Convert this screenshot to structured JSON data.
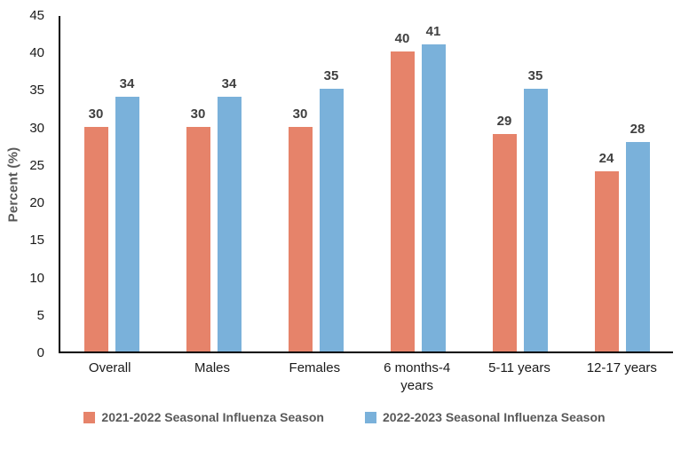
{
  "chart_data": {
    "type": "bar",
    "title": "",
    "xlabel": "",
    "ylabel": "Percent (%)",
    "ylim": [
      0,
      45
    ],
    "yticks": [
      0,
      5,
      10,
      15,
      20,
      25,
      30,
      35,
      40,
      45
    ],
    "grid": false,
    "legend_position": "bottom",
    "value_labels": true,
    "categories": [
      "Overall",
      "Males",
      "Females",
      "6 months-4 years",
      "5-11 years",
      "12-17 years"
    ],
    "series": [
      {
        "name": "2021-2022 Seasonal Influenza Season",
        "color": "#E6836A",
        "values": [
          30,
          30,
          30,
          40,
          29,
          24
        ]
      },
      {
        "name": "2022-2023 Seasonal Influenza Season",
        "color": "#7AB1DA",
        "values": [
          34,
          34,
          35,
          41,
          35,
          28
        ]
      }
    ],
    "colors": {
      "axis_line": "#000000",
      "tick_label": "#1a1a1a",
      "category_label": "#1a1a1a",
      "value_label": "#404040",
      "y_title": "#595959",
      "legend_text": "#595959",
      "background": "#ffffff"
    }
  }
}
